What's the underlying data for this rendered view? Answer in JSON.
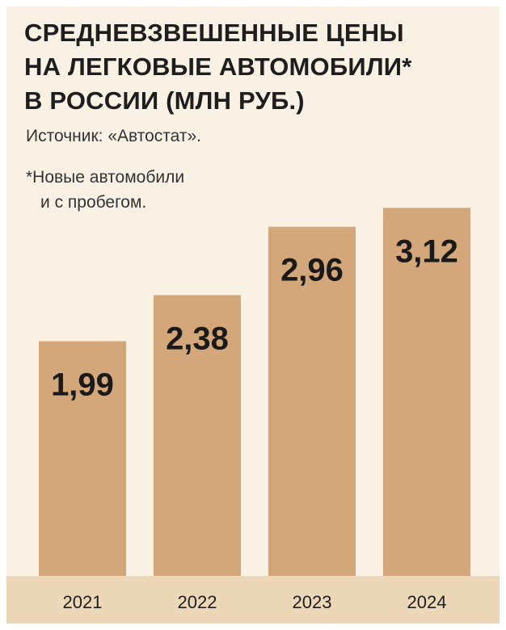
{
  "title_lines": [
    "СРЕДНЕВЗВЕШЕННЫЕ ЦЕНЫ",
    "НА ЛЕГКОВЫЕ АВТОМОБИЛИ*",
    "В РОССИИ (МЛН РУБ.)"
  ],
  "source": "Источник: «Автостат».",
  "note_lines": [
    "*Новые автомобили",
    "и с пробегом."
  ],
  "colors": {
    "background": "#f8f1e4",
    "bar": "#d4a77a",
    "axis_band": "#ecd7b8",
    "text": "#1e1e1e"
  },
  "chart_data": {
    "type": "bar",
    "title": "СРЕДНЕВЗВЕШЕННЫЕ ЦЕНЫ НА ЛЕГКОВЫЕ АВТОМОБИЛИ* В РОССИИ (МЛН РУБ.)",
    "categories": [
      "2021",
      "2022",
      "2023",
      "2024"
    ],
    "values": [
      1.99,
      2.38,
      2.96,
      3.12
    ],
    "value_labels": [
      "1,99",
      "2,38",
      "2,96",
      "3,12"
    ],
    "xlabel": "",
    "ylabel": "",
    "ylim": [
      0,
      4.3
    ],
    "grid": false,
    "legend": "none"
  }
}
